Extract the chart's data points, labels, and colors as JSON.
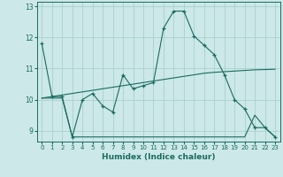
{
  "xlabel": "Humidex (Indice chaleur)",
  "bg_color": "#cce8e8",
  "grid_color": "#aacfcf",
  "line_color": "#1a6b60",
  "xlim": [
    -0.5,
    23.5
  ],
  "ylim": [
    8.65,
    13.15
  ],
  "yticks": [
    9,
    10,
    11,
    12,
    13
  ],
  "xticks": [
    0,
    1,
    2,
    3,
    4,
    5,
    6,
    7,
    8,
    9,
    10,
    11,
    12,
    13,
    14,
    15,
    16,
    17,
    18,
    19,
    20,
    21,
    22,
    23
  ],
  "line1_x": [
    0,
    1,
    2,
    3,
    4,
    5,
    6,
    7,
    8,
    9,
    10,
    11,
    12,
    13,
    14,
    15,
    16,
    17,
    18,
    19,
    20,
    21,
    22,
    23
  ],
  "line1_y": [
    11.8,
    10.1,
    10.1,
    8.8,
    10.0,
    10.2,
    9.8,
    9.6,
    10.8,
    10.35,
    10.45,
    10.55,
    12.3,
    12.85,
    12.85,
    12.05,
    11.75,
    11.45,
    10.8,
    10.0,
    9.7,
    9.1,
    9.1,
    8.8
  ],
  "line2_x": [
    0,
    1,
    2,
    3,
    4,
    5,
    6,
    7,
    8,
    9,
    10,
    11,
    12,
    13,
    14,
    15,
    16,
    17,
    18,
    20,
    21,
    22,
    23
  ],
  "line2_y": [
    10.05,
    10.05,
    10.05,
    8.8,
    8.8,
    8.8,
    8.8,
    8.8,
    8.8,
    8.8,
    8.8,
    8.8,
    8.8,
    8.8,
    8.8,
    8.8,
    8.8,
    8.8,
    8.8,
    8.8,
    9.5,
    9.1,
    8.8
  ],
  "line3_x": [
    0,
    1,
    2,
    3,
    4,
    5,
    6,
    7,
    8,
    9,
    10,
    11,
    12,
    13,
    14,
    15,
    16,
    17,
    18,
    19,
    20,
    21,
    22,
    23
  ],
  "line3_y": [
    10.05,
    10.1,
    10.15,
    10.2,
    10.25,
    10.3,
    10.35,
    10.4,
    10.45,
    10.5,
    10.55,
    10.6,
    10.65,
    10.7,
    10.75,
    10.8,
    10.85,
    10.88,
    10.9,
    10.92,
    10.94,
    10.96,
    10.97,
    10.98
  ]
}
